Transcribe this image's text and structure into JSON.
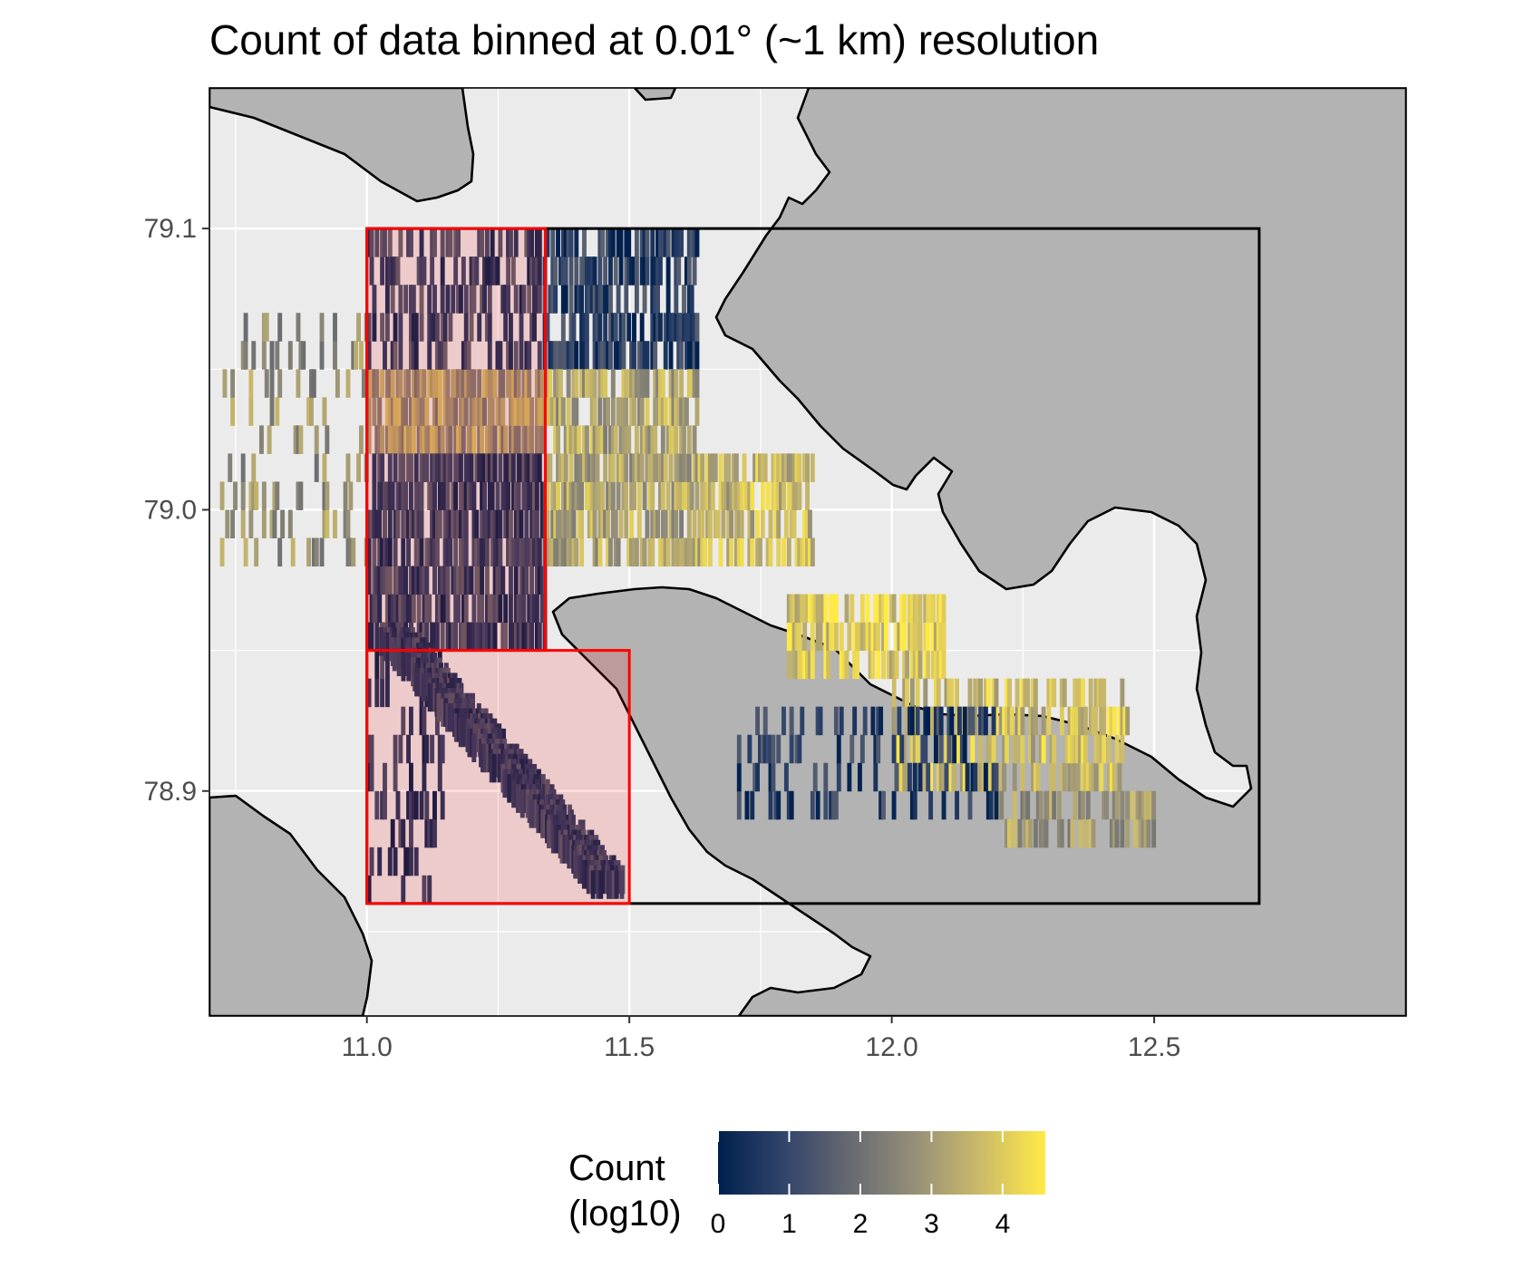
{
  "chart_data": {
    "type": "heatmap",
    "title": "Count of data binned at 0.01° (~1 km) resolution",
    "xlabel": "",
    "ylabel": "",
    "xlim": [
      10.7,
      12.98
    ],
    "ylim": [
      78.82,
      79.15
    ],
    "x_ticks": [
      "11.0",
      "11.5",
      "12.0",
      "12.5"
    ],
    "x_tick_values": [
      11.0,
      11.5,
      12.0,
      12.5
    ],
    "y_ticks": [
      "79.1",
      "79.0",
      "78.9"
    ],
    "y_tick_values": [
      79.1,
      79.0,
      78.9
    ],
    "grid": true,
    "bin_size": 0.01,
    "legend": {
      "title_line1": "Count",
      "title_line2": "(log10)",
      "placement": "bottom",
      "range": [
        0,
        4.6
      ],
      "ticks": [
        "0",
        "1",
        "2",
        "3",
        "4"
      ],
      "tick_values": [
        0,
        1,
        2,
        3,
        4
      ],
      "colors": [
        "#00204d",
        "#31446b",
        "#666970",
        "#958f78",
        "#cbba69",
        "#ffea46"
      ]
    },
    "colors": {
      "land": "#b3b3b3",
      "water": "#ebebeb",
      "gridline": "#ffffff",
      "coastline": "#000000",
      "study_box": "#000000",
      "region_box": "#ff0000",
      "region_fill": "#ff000022"
    },
    "regions": {
      "study_area": {
        "lon": [
          11.0,
          12.7
        ],
        "lat": [
          78.86,
          79.1
        ]
      },
      "outer_fjord_north": {
        "lon": [
          11.0,
          11.34
        ],
        "lat": [
          78.95,
          79.1
        ]
      },
      "outer_fjord_south": {
        "lon": [
          11.0,
          11.5
        ],
        "lat": [
          78.86,
          78.95
        ]
      }
    },
    "heat_zones": [
      {
        "lon": [
          10.72,
          11.0
        ],
        "lat": [
          78.98,
          79.07
        ],
        "v": 2.8,
        "density": 0.22
      },
      {
        "lon": [
          11.0,
          11.34
        ],
        "lat": [
          79.02,
          79.05
        ],
        "v": 3.0,
        "density": 0.75
      },
      {
        "lon": [
          11.0,
          11.34
        ],
        "lat": [
          79.05,
          79.1
        ],
        "v": 0.9,
        "density": 0.45
      },
      {
        "lon": [
          11.0,
          11.34
        ],
        "lat": [
          78.95,
          79.02
        ],
        "v": 0.9,
        "density": 0.75
      },
      {
        "lon": [
          11.0,
          11.15
        ],
        "lat": [
          78.86,
          78.95
        ],
        "v": 0.5,
        "density": 0.3
      },
      {
        "lon": [
          11.34,
          11.63
        ],
        "lat": [
          79.05,
          79.1
        ],
        "v": 0.8,
        "density": 0.6
      },
      {
        "lon": [
          11.34,
          11.63
        ],
        "lat": [
          78.98,
          79.05
        ],
        "v": 3.2,
        "density": 0.7
      },
      {
        "lon": [
          11.63,
          11.85
        ],
        "lat": [
          78.98,
          79.02
        ],
        "v": 3.5,
        "density": 0.6
      },
      {
        "lon": [
          11.8,
          12.1
        ],
        "lat": [
          78.94,
          78.97
        ],
        "v": 4.0,
        "density": 0.65
      },
      {
        "lon": [
          12.0,
          12.45
        ],
        "lat": [
          78.9,
          78.94
        ],
        "v": 3.7,
        "density": 0.55
      },
      {
        "lon": [
          12.2,
          12.5
        ],
        "lat": [
          78.88,
          78.9
        ],
        "v": 3.0,
        "density": 0.5
      },
      {
        "lon": [
          11.7,
          12.2
        ],
        "lat": [
          78.89,
          78.93
        ],
        "v": 0.7,
        "density": 0.3
      }
    ],
    "heat_path": {
      "from": {
        "lon": 11.05,
        "lat": 78.95
      },
      "to": {
        "lon": 11.47,
        "lat": 78.86
      },
      "v": 0.8,
      "width": 0.07
    }
  }
}
